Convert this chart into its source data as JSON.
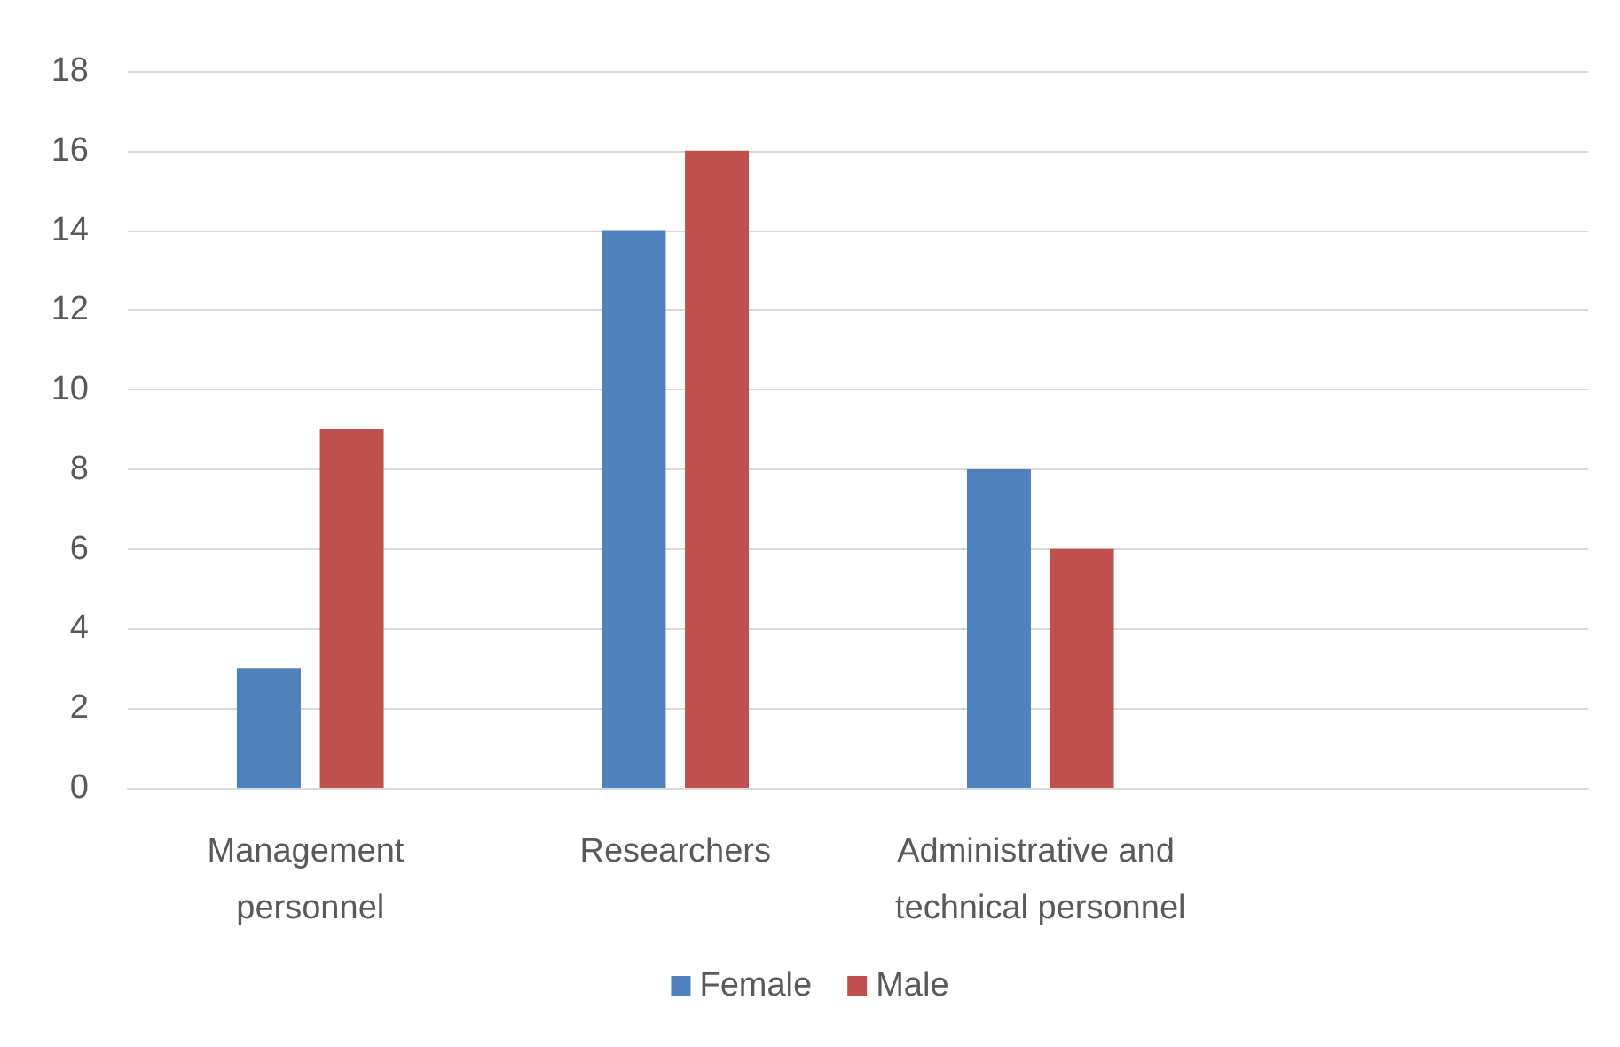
{
  "chart_data": {
    "type": "bar",
    "categories": [
      "Management personnel",
      "Researchers",
      "Administrative and technical personnel",
      null
    ],
    "series": [
      {
        "name": "Female",
        "color": "#4f81bd",
        "values": [
          3,
          14,
          8,
          null
        ]
      },
      {
        "name": "Male",
        "color": "#c0504d",
        "values": [
          9,
          16,
          6,
          null
        ]
      }
    ],
    "ylim": [
      0,
      18
    ],
    "yticks": [
      0,
      2,
      4,
      6,
      8,
      10,
      12,
      14,
      16,
      18
    ],
    "grid": "y",
    "legend": "bottom"
  }
}
